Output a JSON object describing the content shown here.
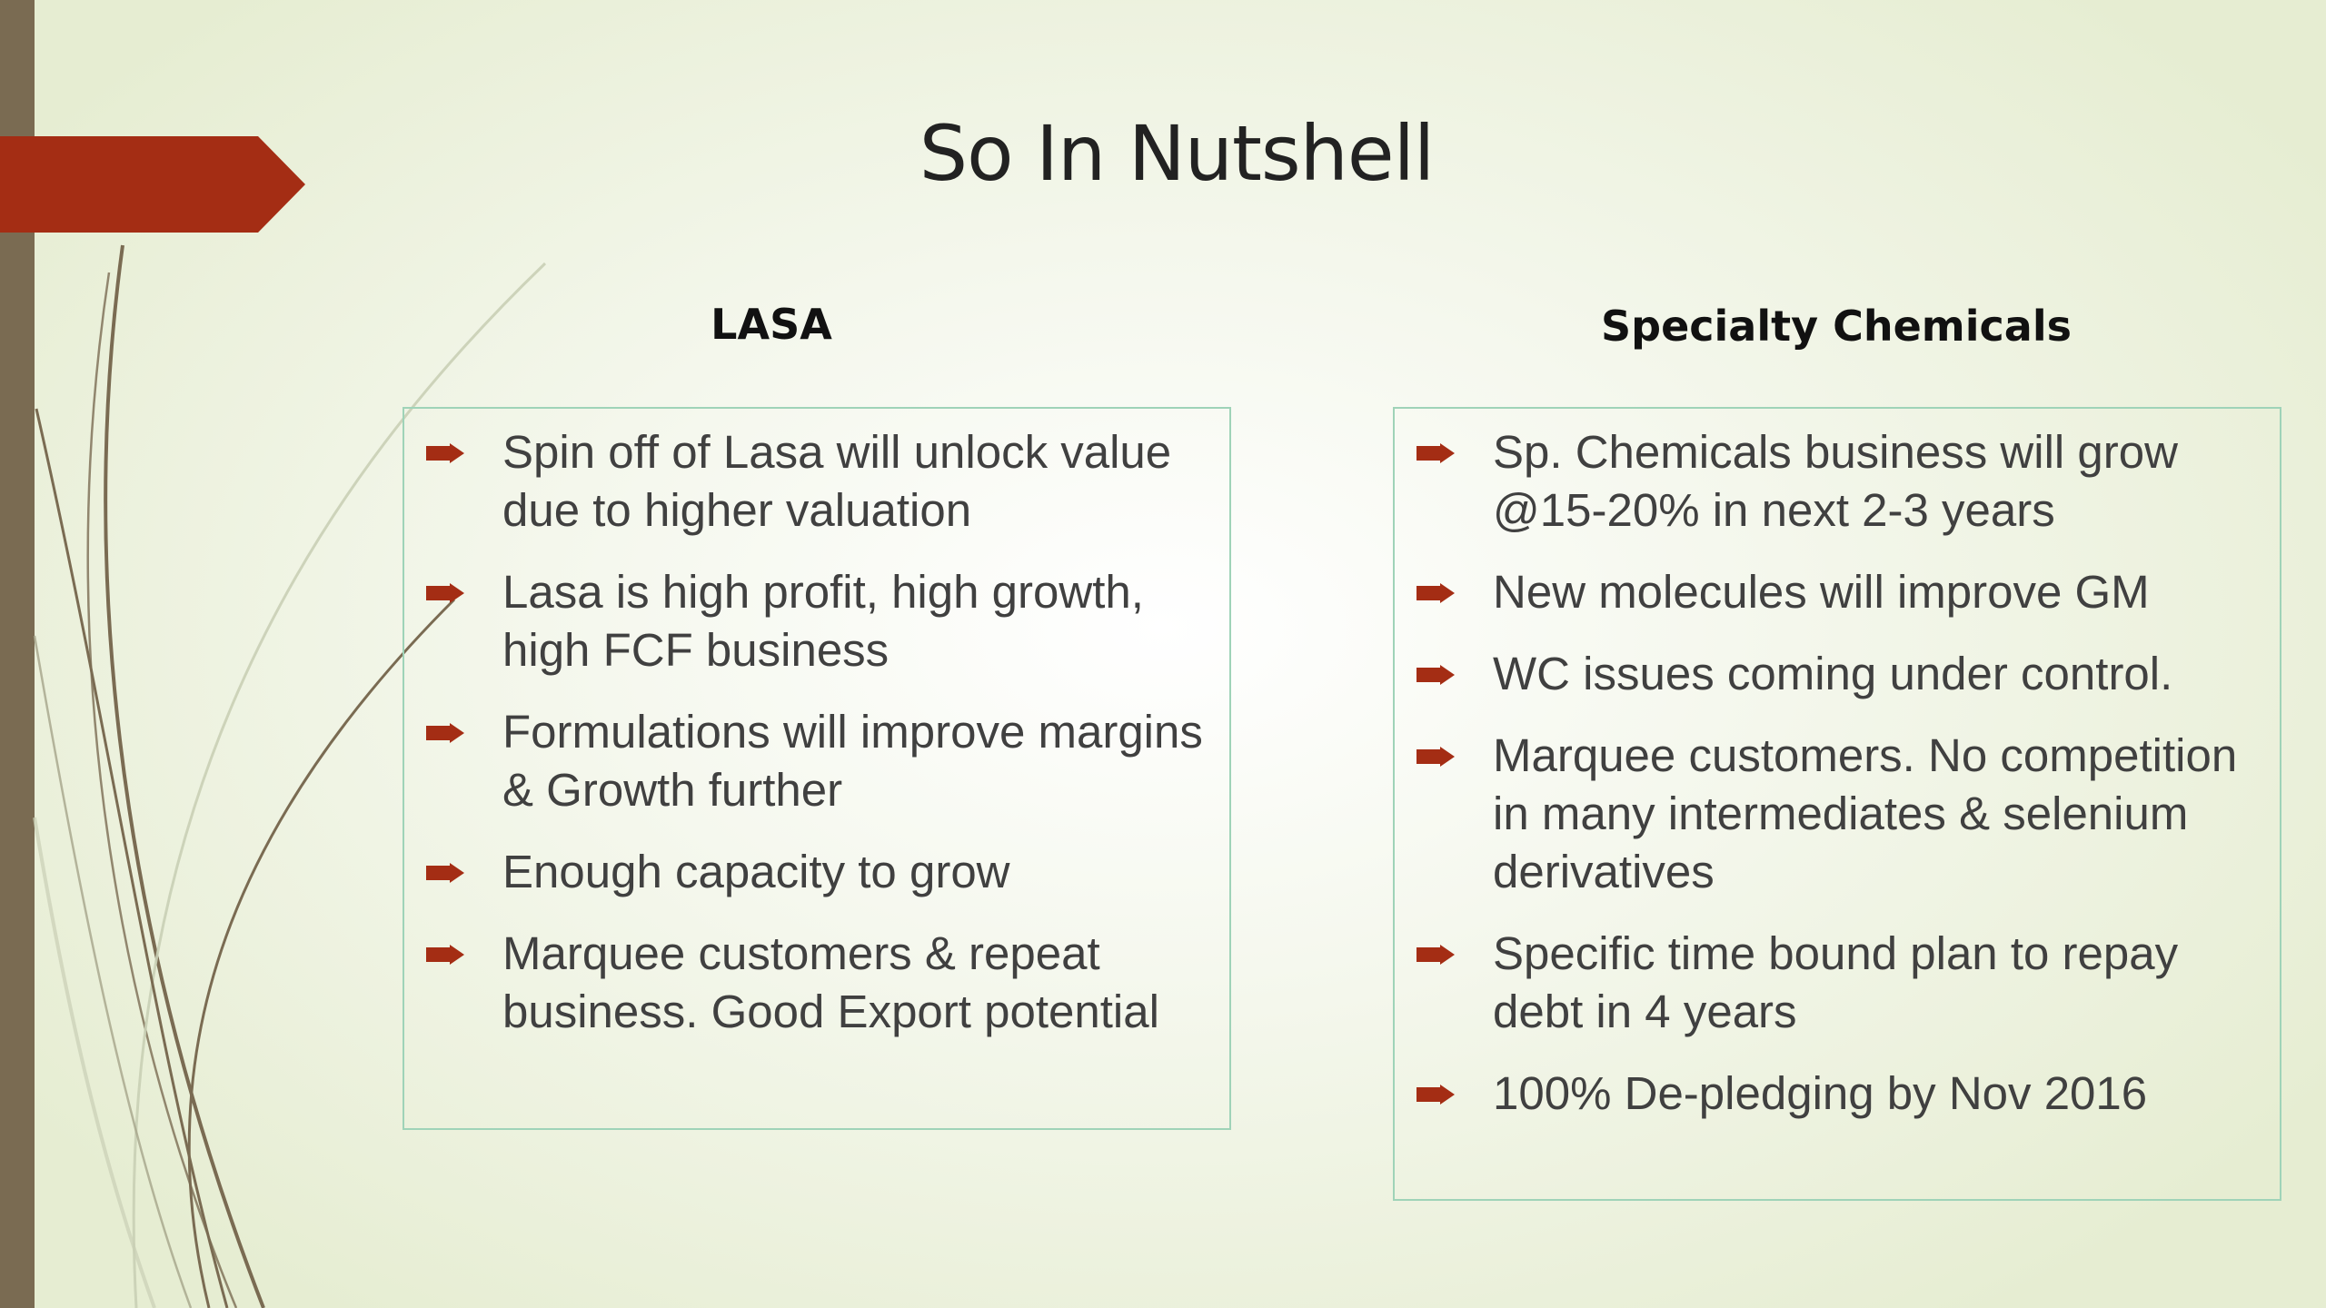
{
  "slide": {
    "title": "So In Nutshell",
    "accent_color": "#a42d14",
    "side_bar_color": "#7a6b52",
    "box_border_color": "#9fd3b8"
  },
  "columns": {
    "left": {
      "heading": "LASA",
      "bullets": [
        "Spin off of Lasa will unlock value due to higher valuation",
        "Lasa is high profit, high growth, high FCF business",
        "Formulations will improve margins & Growth further",
        "Enough capacity to grow",
        "Marquee customers & repeat business. Good Export potential"
      ]
    },
    "right": {
      "heading": "Specialty Chemicals",
      "bullets": [
        "Sp. Chemicals business will grow @15-20% in next 2-3 years",
        "New molecules will improve GM",
        "WC issues coming under control.",
        "Marquee customers. No competition in many intermediates & selenium derivatives",
        "Specific time bound plan to repay debt in 4 years",
        "100% De-pledging by Nov 2016"
      ]
    }
  },
  "icons": {
    "bullet": "arrow-bullet-icon",
    "banner": "arrow-banner-shape"
  }
}
